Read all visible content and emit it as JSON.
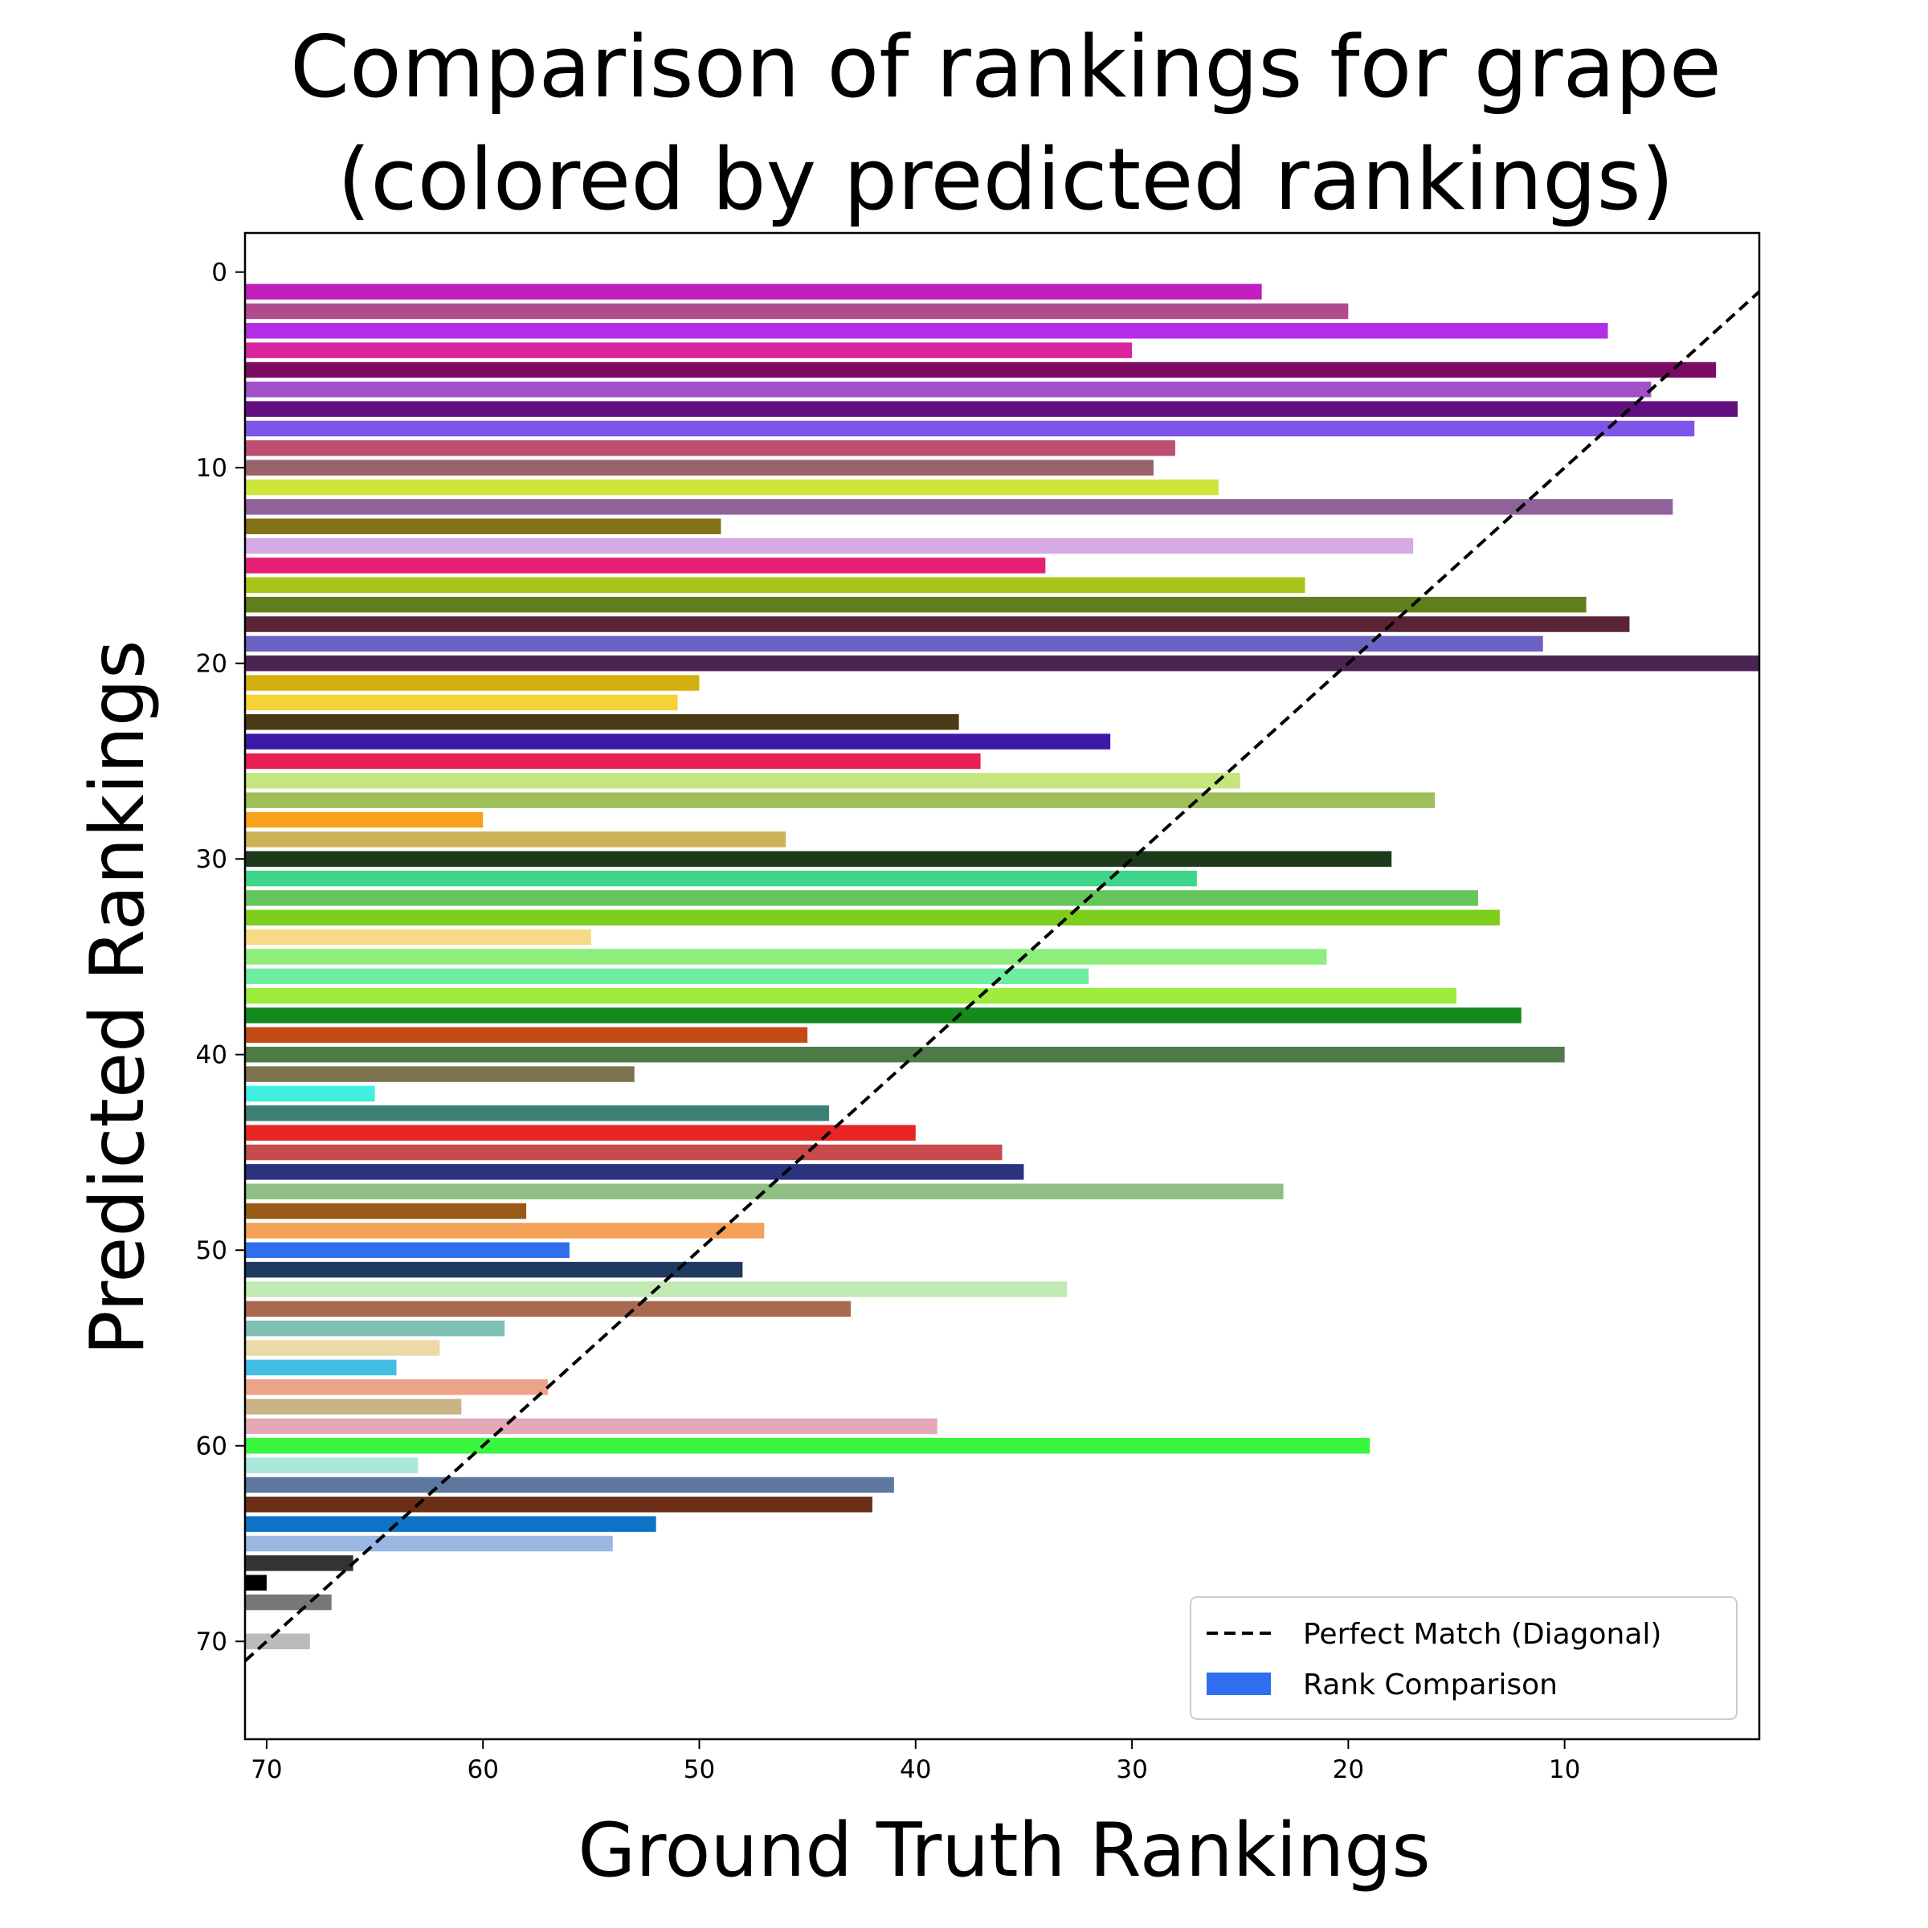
{
  "chart_data": {
    "type": "bar",
    "orientation": "horizontal",
    "title_lines": [
      "Comparison of rankings for grape",
      "(colored by predicted rankings)"
    ],
    "xlabel": "Ground Truth Rankings",
    "ylabel": "Predicted Rankings",
    "xlim": [
      71,
      1
    ],
    "ylim": [
      75,
      -2
    ],
    "xticks": [
      70,
      60,
      50,
      40,
      30,
      20,
      10
    ],
    "yticks": [
      0,
      10,
      20,
      30,
      40,
      50,
      60,
      70
    ],
    "grid": false,
    "legend_position": "lower-right",
    "legend": {
      "diagonal_label": "Perfect Match (Diagonal)",
      "bars_label": "Rank Comparison",
      "bars_color": "#2f6fef"
    },
    "diagonal": {
      "from": [
        71,
        71
      ],
      "to": [
        0,
        0
      ]
    },
    "bars": [
      {
        "predicted": 1,
        "ground_truth": 24,
        "color": "#c21fbf"
      },
      {
        "predicted": 2,
        "ground_truth": 20,
        "color": "#b24a90"
      },
      {
        "predicted": 3,
        "ground_truth": 8,
        "color": "#b22ee6"
      },
      {
        "predicted": 4,
        "ground_truth": 30,
        "color": "#d8249e"
      },
      {
        "predicted": 5,
        "ground_truth": 3,
        "color": "#7b0b63"
      },
      {
        "predicted": 6,
        "ground_truth": 6,
        "color": "#a24fca"
      },
      {
        "predicted": 7,
        "ground_truth": 2,
        "color": "#620e7f"
      },
      {
        "predicted": 8,
        "ground_truth": 4,
        "color": "#7e55e8"
      },
      {
        "predicted": 9,
        "ground_truth": 28,
        "color": "#bd4e72"
      },
      {
        "predicted": 10,
        "ground_truth": 29,
        "color": "#9a626a"
      },
      {
        "predicted": 11,
        "ground_truth": 26,
        "color": "#cde43a"
      },
      {
        "predicted": 12,
        "ground_truth": 5,
        "color": "#8f6399"
      },
      {
        "predicted": 13,
        "ground_truth": 49,
        "color": "#817218"
      },
      {
        "predicted": 14,
        "ground_truth": 17,
        "color": "#d6aae4"
      },
      {
        "predicted": 15,
        "ground_truth": 34,
        "color": "#e41f76"
      },
      {
        "predicted": 16,
        "ground_truth": 22,
        "color": "#a7c518"
      },
      {
        "predicted": 17,
        "ground_truth": 9,
        "color": "#5f7f1e"
      },
      {
        "predicted": 18,
        "ground_truth": 7,
        "color": "#5a2437"
      },
      {
        "predicted": 19,
        "ground_truth": 11,
        "color": "#6b63c2"
      },
      {
        "predicted": 20,
        "ground_truth": 1,
        "color": "#4a2553"
      },
      {
        "predicted": 21,
        "ground_truth": 50,
        "color": "#d4b10f"
      },
      {
        "predicted": 22,
        "ground_truth": 51,
        "color": "#f4d238"
      },
      {
        "predicted": 23,
        "ground_truth": 38,
        "color": "#4b3a16"
      },
      {
        "predicted": 24,
        "ground_truth": 31,
        "color": "#3e18a8"
      },
      {
        "predicted": 25,
        "ground_truth": 37,
        "color": "#e71f55"
      },
      {
        "predicted": 26,
        "ground_truth": 25,
        "color": "#c7e57d"
      },
      {
        "predicted": 27,
        "ground_truth": 16,
        "color": "#9fbf58"
      },
      {
        "predicted": 28,
        "ground_truth": 60,
        "color": "#f6a31b"
      },
      {
        "predicted": 29,
        "ground_truth": 46,
        "color": "#cbb356"
      },
      {
        "predicted": 30,
        "ground_truth": 18,
        "color": "#1d3b1a"
      },
      {
        "predicted": 31,
        "ground_truth": 27,
        "color": "#3ed58b"
      },
      {
        "predicted": 32,
        "ground_truth": 14,
        "color": "#64c65a"
      },
      {
        "predicted": 33,
        "ground_truth": 13,
        "color": "#7ccd1c"
      },
      {
        "predicted": 34,
        "ground_truth": 55,
        "color": "#f7da85"
      },
      {
        "predicted": 35,
        "ground_truth": 21,
        "color": "#8eed7b"
      },
      {
        "predicted": 36,
        "ground_truth": 32,
        "color": "#6deca2"
      },
      {
        "predicted": 37,
        "ground_truth": 15,
        "color": "#9eec3c"
      },
      {
        "predicted": 38,
        "ground_truth": 12,
        "color": "#158a1c"
      },
      {
        "predicted": 39,
        "ground_truth": 45,
        "color": "#c44a16"
      },
      {
        "predicted": 40,
        "ground_truth": 10,
        "color": "#4e7b47"
      },
      {
        "predicted": 41,
        "ground_truth": 53,
        "color": "#7c724d"
      },
      {
        "predicted": 42,
        "ground_truth": 65,
        "color": "#3ff0e0"
      },
      {
        "predicted": 43,
        "ground_truth": 44,
        "color": "#3d7f74"
      },
      {
        "predicted": 44,
        "ground_truth": 40,
        "color": "#e92424"
      },
      {
        "predicted": 45,
        "ground_truth": 36,
        "color": "#c94a4d"
      },
      {
        "predicted": 46,
        "ground_truth": 35,
        "color": "#2b327e"
      },
      {
        "predicted": 47,
        "ground_truth": 23,
        "color": "#8fbf85"
      },
      {
        "predicted": 48,
        "ground_truth": 58,
        "color": "#9a5a17"
      },
      {
        "predicted": 49,
        "ground_truth": 47,
        "color": "#f4a259"
      },
      {
        "predicted": 50,
        "ground_truth": 56,
        "color": "#2f6fef"
      },
      {
        "predicted": 51,
        "ground_truth": 48,
        "color": "#1e3a60"
      },
      {
        "predicted": 52,
        "ground_truth": 33,
        "color": "#c1e9b4"
      },
      {
        "predicted": 53,
        "ground_truth": 43,
        "color": "#a8694e"
      },
      {
        "predicted": 54,
        "ground_truth": 59,
        "color": "#7fc0b4"
      },
      {
        "predicted": 55,
        "ground_truth": 62,
        "color": "#ebd9a8"
      },
      {
        "predicted": 56,
        "ground_truth": 64,
        "color": "#44bde4"
      },
      {
        "predicted": 57,
        "ground_truth": 57,
        "color": "#eda28a"
      },
      {
        "predicted": 58,
        "ground_truth": 61,
        "color": "#c9b387"
      },
      {
        "predicted": 59,
        "ground_truth": 39,
        "color": "#e4a8b6"
      },
      {
        "predicted": 60,
        "ground_truth": 19,
        "color": "#3bf63e"
      },
      {
        "predicted": 61,
        "ground_truth": 63,
        "color": "#a9e8da"
      },
      {
        "predicted": 62,
        "ground_truth": 41,
        "color": "#5d779e"
      },
      {
        "predicted": 63,
        "ground_truth": 42,
        "color": "#6a2f16"
      },
      {
        "predicted": 64,
        "ground_truth": 52,
        "color": "#0d73c6"
      },
      {
        "predicted": 65,
        "ground_truth": 54,
        "color": "#9bb8e4"
      },
      {
        "predicted": 66,
        "ground_truth": 66,
        "color": "#333333"
      },
      {
        "predicted": 67,
        "ground_truth": 70,
        "color": "#000000"
      },
      {
        "predicted": 68,
        "ground_truth": 67,
        "color": "#777777"
      },
      {
        "predicted": 70,
        "ground_truth": 68,
        "color": "#bbbbbb"
      }
    ]
  }
}
